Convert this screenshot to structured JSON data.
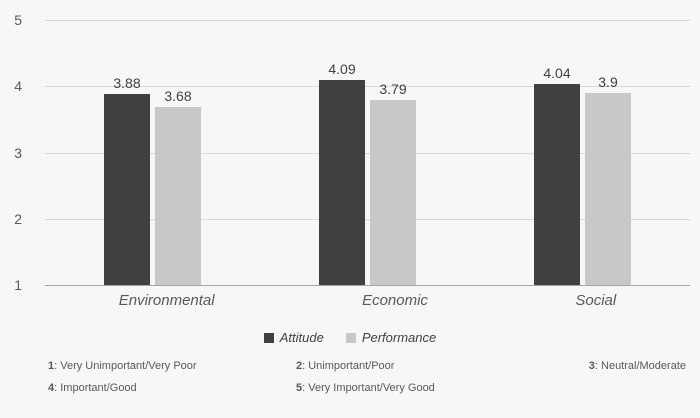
{
  "chart_data": {
    "type": "bar",
    "categories": [
      "Environmental",
      "Economic",
      "Social"
    ],
    "series": [
      {
        "name": "Attitude",
        "color": "#404040",
        "values": [
          3.88,
          4.09,
          4.04
        ],
        "labels": [
          "3.88",
          "4.09",
          "4.04"
        ]
      },
      {
        "name": "Performance",
        "color": "#c8c8c8",
        "values": [
          3.68,
          3.79,
          3.9
        ],
        "labels": [
          "3.68",
          "3.79",
          "3.9"
        ]
      }
    ],
    "ylim": [
      1,
      5
    ],
    "yticks": [
      1,
      2,
      3,
      4,
      5
    ],
    "grid": true,
    "legend_position": "bottom",
    "title": "",
    "xlabel": "",
    "ylabel": ""
  },
  "notes": {
    "rows": [
      [
        {
          "num": "1",
          "rest": ": Very Unimportant/Very Poor"
        },
        {
          "num": "2",
          "rest": ": Unimportant/Poor"
        },
        {
          "num": "3",
          "rest": ": Neutral/Moderate"
        }
      ],
      [
        {
          "num": "4",
          "rest": ": Important/Good"
        },
        {
          "num": "5",
          "rest": ": Very Important/Very Good"
        },
        {
          "num": "",
          "rest": ""
        }
      ]
    ]
  }
}
